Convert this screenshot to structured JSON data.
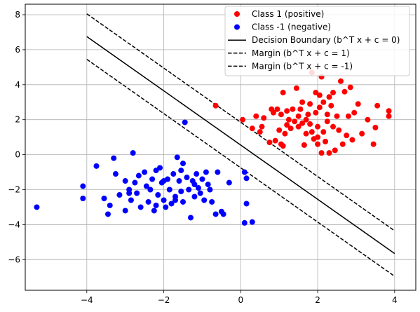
{
  "chart_data": {
    "type": "scatter",
    "title": "",
    "xlabel": "",
    "ylabel": "",
    "xlim": [
      -5.6,
      4.55
    ],
    "ylim": [
      -7.75,
      8.6
    ],
    "grid": true,
    "legend_position": "top-right",
    "x_ticks": [
      -4,
      -2,
      0,
      2,
      4
    ],
    "y_ticks": [
      -6,
      -4,
      -2,
      0,
      2,
      4,
      6,
      8
    ],
    "series": [
      {
        "name": "Class 1 (positive)",
        "marker": "circle",
        "color": "#ff0000",
        "points": [
          [
            -0.65,
            2.8
          ],
          [
            0.05,
            2.0
          ],
          [
            0.3,
            1.5
          ],
          [
            0.4,
            2.2
          ],
          [
            0.5,
            1.3
          ],
          [
            0.55,
            1.6
          ],
          [
            0.6,
            2.1
          ],
          [
            0.75,
            0.7
          ],
          [
            0.8,
            2.6
          ],
          [
            0.85,
            2.4
          ],
          [
            0.9,
            0.8
          ],
          [
            0.95,
            2.6
          ],
          [
            1.0,
            1.4
          ],
          [
            1.05,
            2.3
          ],
          [
            1.05,
            0.6
          ],
          [
            1.1,
            3.55
          ],
          [
            1.1,
            0.5
          ],
          [
            1.15,
            1.2
          ],
          [
            1.2,
            1.7
          ],
          [
            1.25,
            2.0
          ],
          [
            1.3,
            1.5
          ],
          [
            1.35,
            2.6
          ],
          [
            1.4,
            1.9
          ],
          [
            1.45,
            3.8
          ],
          [
            1.5,
            1.6
          ],
          [
            1.5,
            2.2
          ],
          [
            1.55,
            2.6
          ],
          [
            1.6,
            1.8
          ],
          [
            1.6,
            3.0
          ],
          [
            1.65,
            0.55
          ],
          [
            1.7,
            1.2
          ],
          [
            1.75,
            2.3
          ],
          [
            1.8,
            1.75
          ],
          [
            1.8,
            2.9
          ],
          [
            1.85,
            4.7
          ],
          [
            1.85,
            1.3
          ],
          [
            1.9,
            0.9
          ],
          [
            1.95,
            2.4
          ],
          [
            1.95,
            3.55
          ],
          [
            2.0,
            1.6
          ],
          [
            2.0,
            0.6
          ],
          [
            2.05,
            2.7
          ],
          [
            2.05,
            3.4
          ],
          [
            2.1,
            4.45
          ],
          [
            2.1,
            0.1
          ],
          [
            2.15,
            1.3
          ],
          [
            2.15,
            3.0
          ],
          [
            2.2,
            0.75
          ],
          [
            2.25,
            2.3
          ],
          [
            2.25,
            1.9
          ],
          [
            2.3,
            3.3
          ],
          [
            2.3,
            0.1
          ],
          [
            2.35,
            2.8
          ],
          [
            2.4,
            1.6
          ],
          [
            2.4,
            3.55
          ],
          [
            2.45,
            0.25
          ],
          [
            2.5,
            2.2
          ],
          [
            2.55,
            1.4
          ],
          [
            2.6,
            4.2
          ],
          [
            2.65,
            0.6
          ],
          [
            2.7,
            3.6
          ],
          [
            2.75,
            1.1
          ],
          [
            2.8,
            2.2
          ],
          [
            2.85,
            3.85
          ],
          [
            2.9,
            0.85
          ],
          [
            2.95,
            2.4
          ],
          [
            3.05,
            2.9
          ],
          [
            3.15,
            1.2
          ],
          [
            3.3,
            2.0
          ],
          [
            3.45,
            0.6
          ],
          [
            3.5,
            1.55
          ],
          [
            3.55,
            2.8
          ],
          [
            3.85,
            2.5
          ],
          [
            3.85,
            2.2
          ],
          [
            2.0,
            1.0
          ],
          [
            1.2,
            2.5
          ],
          [
            1.7,
            2.0
          ]
        ]
      },
      {
        "name": "Class -1 (negative)",
        "marker": "circle",
        "color": "#0000ff",
        "points": [
          [
            -5.3,
            -3.0
          ],
          [
            -4.1,
            -1.8
          ],
          [
            -4.1,
            -2.5
          ],
          [
            -3.75,
            -0.65
          ],
          [
            -3.55,
            -2.5
          ],
          [
            -3.45,
            -3.4
          ],
          [
            -3.4,
            -2.9
          ],
          [
            -3.3,
            -0.2
          ],
          [
            -3.25,
            -1.1
          ],
          [
            -3.15,
            -2.3
          ],
          [
            -3.0,
            -1.5
          ],
          [
            -3.0,
            -3.2
          ],
          [
            -2.9,
            -2.0
          ],
          [
            -2.85,
            -2.6
          ],
          [
            -2.8,
            0.1
          ],
          [
            -2.75,
            -1.6
          ],
          [
            -2.7,
            -2.2
          ],
          [
            -2.65,
            -1.2
          ],
          [
            -2.6,
            -3.0
          ],
          [
            -2.5,
            -1.0
          ],
          [
            -2.45,
            -1.8
          ],
          [
            -2.4,
            -2.7
          ],
          [
            -2.35,
            -2.0
          ],
          [
            -2.3,
            -1.4
          ],
          [
            -2.25,
            -3.2
          ],
          [
            -2.2,
            -0.9
          ],
          [
            -2.15,
            -2.3
          ],
          [
            -2.1,
            -0.75
          ],
          [
            -2.05,
            -1.6
          ],
          [
            -2.0,
            -2.6
          ],
          [
            -1.95,
            -3.0
          ],
          [
            -1.9,
            -1.4
          ],
          [
            -1.85,
            -2.0
          ],
          [
            -1.8,
            -2.8
          ],
          [
            -1.75,
            -1.1
          ],
          [
            -1.7,
            -2.4
          ],
          [
            -1.65,
            -0.15
          ],
          [
            -1.6,
            -1.5
          ],
          [
            -1.55,
            -2.1
          ],
          [
            -1.5,
            -2.7
          ],
          [
            -1.5,
            -0.5
          ],
          [
            -1.45,
            1.85
          ],
          [
            -1.4,
            -1.3
          ],
          [
            -1.35,
            -2.0
          ],
          [
            -1.3,
            -3.6
          ],
          [
            -1.25,
            -1.5
          ],
          [
            -1.2,
            -2.4
          ],
          [
            -1.15,
            -1.1
          ],
          [
            -1.1,
            -1.9
          ],
          [
            -1.05,
            -2.2
          ],
          [
            -1.0,
            -1.4
          ],
          [
            -0.95,
            -2.6
          ],
          [
            -0.9,
            -1.0
          ],
          [
            -0.85,
            -1.7
          ],
          [
            -0.8,
            -2.0
          ],
          [
            -0.75,
            -2.7
          ],
          [
            -0.65,
            -3.4
          ],
          [
            -0.6,
            -1.0
          ],
          [
            -0.5,
            -3.25
          ],
          [
            -0.45,
            -3.4
          ],
          [
            -0.3,
            -1.6
          ],
          [
            0.1,
            -1.0
          ],
          [
            0.1,
            -3.9
          ],
          [
            0.15,
            -2.8
          ],
          [
            0.3,
            -3.85
          ],
          [
            0.15,
            -1.35
          ],
          [
            -2.0,
            -1.5
          ],
          [
            -1.7,
            -2.6
          ],
          [
            -2.9,
            -2.2
          ],
          [
            -1.2,
            -1.7
          ],
          [
            -2.2,
            -2.9
          ],
          [
            -1.55,
            -0.9
          ]
        ]
      }
    ],
    "lines": [
      {
        "name": "Decision Boundary (b^T x + c = 0)",
        "style": "solid",
        "color": "#000000",
        "x": [
          -4,
          4
        ],
        "y": [
          6.75,
          -5.65
        ]
      },
      {
        "name": "Margin (b^T x + c = 1)",
        "style": "dashed",
        "color": "#000000",
        "x": [
          -4,
          4
        ],
        "y": [
          8.05,
          -4.35
        ]
      },
      {
        "name": "Margin (b^T x + c = -1)",
        "style": "dashed",
        "color": "#000000",
        "x": [
          -4,
          4
        ],
        "y": [
          5.45,
          -6.95
        ]
      }
    ]
  }
}
